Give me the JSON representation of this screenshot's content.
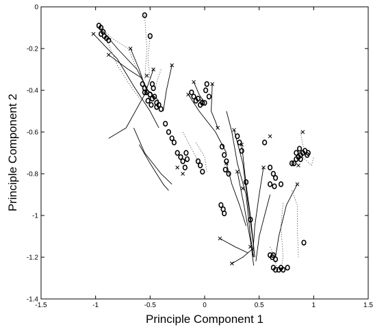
{
  "chart_data": {
    "type": "scatter",
    "title": "",
    "xlabel": "Principle Component 1",
    "ylabel": "Principle Component 2",
    "xlim": [
      -1.5,
      1.5
    ],
    "ylim": [
      -1.4,
      0
    ],
    "xticks": [
      "-1.5",
      "-1",
      "-0.5",
      "0",
      "0.5",
      "1",
      "1.5"
    ],
    "yticks": [
      "-1.4",
      "-1.2",
      "-1",
      "-0.8",
      "-0.6",
      "-0.4",
      "-0.2",
      "0"
    ],
    "grid": false,
    "legend": "none",
    "series": [
      {
        "marker": "o",
        "values": [
          [
            -0.97,
            -0.09
          ],
          [
            -0.95,
            -0.1
          ],
          [
            -0.93,
            -0.12
          ],
          [
            -0.92,
            -0.14
          ],
          [
            -0.9,
            -0.15
          ],
          [
            -0.95,
            -0.13
          ],
          [
            -0.88,
            -0.16
          ],
          [
            -0.55,
            -0.04
          ],
          [
            -0.5,
            -0.14
          ],
          [
            -0.57,
            -0.37
          ],
          [
            -0.55,
            -0.39
          ],
          [
            -0.53,
            -0.41
          ],
          [
            -0.5,
            -0.42
          ],
          [
            -0.48,
            -0.44
          ],
          [
            -0.46,
            -0.43
          ],
          [
            -0.44,
            -0.46
          ],
          [
            -0.52,
            -0.45
          ],
          [
            -0.49,
            -0.47
          ],
          [
            -0.44,
            -0.48
          ],
          [
            -0.42,
            -0.47
          ],
          [
            -0.4,
            -0.49
          ],
          [
            -0.55,
            -0.41
          ],
          [
            -0.48,
            -0.37
          ],
          [
            -0.47,
            -0.39
          ],
          [
            -0.36,
            -0.56
          ],
          [
            -0.33,
            -0.6
          ],
          [
            -0.3,
            -0.63
          ],
          [
            -0.28,
            -0.65
          ],
          [
            -0.25,
            -0.7
          ],
          [
            -0.22,
            -0.72
          ],
          [
            -0.2,
            -0.74
          ],
          [
            -0.18,
            -0.77
          ],
          [
            -0.17,
            -0.7
          ],
          [
            -0.16,
            -0.73
          ],
          [
            -0.12,
            -0.41
          ],
          [
            -0.1,
            -0.43
          ],
          [
            -0.08,
            -0.45
          ],
          [
            -0.06,
            -0.44
          ],
          [
            -0.04,
            -0.47
          ],
          [
            -0.02,
            -0.46
          ],
          [
            0.01,
            -0.4
          ],
          [
            0.02,
            -0.37
          ],
          [
            0.04,
            -0.43
          ],
          [
            0.0,
            -0.46
          ],
          [
            -0.06,
            -0.74
          ],
          [
            -0.04,
            -0.76
          ],
          [
            -0.02,
            -0.79
          ],
          [
            0.16,
            -0.67
          ],
          [
            0.18,
            -0.71
          ],
          [
            0.2,
            -0.74
          ],
          [
            0.19,
            -0.78
          ],
          [
            0.22,
            -0.8
          ],
          [
            0.15,
            -0.95
          ],
          [
            0.17,
            -0.97
          ],
          [
            0.18,
            -0.99
          ],
          [
            0.3,
            -0.62
          ],
          [
            0.32,
            -0.65
          ],
          [
            0.34,
            -0.69
          ],
          [
            0.38,
            -0.84
          ],
          [
            0.42,
            -1.02
          ],
          [
            0.55,
            -0.65
          ],
          [
            0.6,
            -0.77
          ],
          [
            0.63,
            -0.8
          ],
          [
            0.65,
            -0.82
          ],
          [
            0.6,
            -0.85
          ],
          [
            0.64,
            -0.86
          ],
          [
            0.7,
            -0.85
          ],
          [
            0.84,
            -0.7
          ],
          [
            0.86,
            -0.72
          ],
          [
            0.88,
            -0.71
          ],
          [
            0.9,
            -0.7
          ],
          [
            0.92,
            -0.69
          ],
          [
            0.94,
            -0.71
          ],
          [
            0.95,
            -0.7
          ],
          [
            0.88,
            -0.73
          ],
          [
            0.87,
            -0.68
          ],
          [
            0.84,
            -0.73
          ],
          [
            0.82,
            -0.75
          ],
          [
            0.8,
            -0.75
          ],
          [
            0.6,
            -1.19
          ],
          [
            0.62,
            -1.2
          ],
          [
            0.65,
            -1.21
          ],
          [
            0.63,
            -1.19
          ],
          [
            0.63,
            -1.25
          ],
          [
            0.65,
            -1.26
          ],
          [
            0.68,
            -1.26
          ],
          [
            0.7,
            -1.25
          ],
          [
            0.72,
            -1.26
          ],
          [
            0.76,
            -1.25
          ],
          [
            0.91,
            -1.13
          ]
        ]
      },
      {
        "marker": "x",
        "values": [
          [
            -1.02,
            -0.13
          ],
          [
            -0.88,
            -0.23
          ],
          [
            -0.68,
            -0.2
          ],
          [
            -0.53,
            -0.33
          ],
          [
            -0.47,
            -0.3
          ],
          [
            -0.3,
            -0.28
          ],
          [
            -0.15,
            -0.42
          ],
          [
            -0.25,
            -0.77
          ],
          [
            -0.2,
            -0.8
          ],
          [
            -0.1,
            -0.36
          ],
          [
            0.07,
            -0.37
          ],
          [
            -0.03,
            -0.45
          ],
          [
            0.12,
            -0.58
          ],
          [
            0.2,
            -0.75
          ],
          [
            0.27,
            -0.59
          ],
          [
            0.34,
            -0.66
          ],
          [
            0.3,
            -0.79
          ],
          [
            0.35,
            -0.87
          ],
          [
            0.14,
            -1.11
          ],
          [
            0.25,
            -1.23
          ],
          [
            0.42,
            -1.15
          ],
          [
            0.54,
            -0.77
          ],
          [
            0.6,
            -0.62
          ],
          [
            0.85,
            -0.85
          ],
          [
            0.9,
            -0.6
          ],
          [
            0.86,
            -0.76
          ]
        ]
      }
    ],
    "trajectories": {
      "solid": [
        [
          [
            -1.02,
            -0.13
          ],
          [
            -0.8,
            -0.25
          ],
          [
            -0.65,
            -0.38
          ],
          [
            -0.5,
            -0.5
          ],
          [
            -0.42,
            -0.58
          ]
        ],
        [
          [
            -0.96,
            -0.1
          ],
          [
            -0.8,
            -0.2
          ],
          [
            -0.62,
            -0.3
          ],
          [
            -0.52,
            -0.4
          ],
          [
            -0.42,
            -0.45
          ]
        ],
        [
          [
            -0.88,
            -0.23
          ],
          [
            -0.7,
            -0.3
          ],
          [
            -0.58,
            -0.34
          ]
        ],
        [
          [
            -0.47,
            -0.3
          ],
          [
            -0.55,
            -0.42
          ],
          [
            -0.72,
            -0.58
          ],
          [
            -0.88,
            -0.63
          ]
        ],
        [
          [
            -0.68,
            -0.2
          ],
          [
            -0.6,
            -0.3
          ],
          [
            -0.5,
            -0.45
          ]
        ],
        [
          [
            -0.3,
            -0.28
          ],
          [
            -0.35,
            -0.4
          ],
          [
            -0.38,
            -0.5
          ]
        ],
        [
          [
            -0.65,
            -0.58
          ],
          [
            -0.55,
            -0.7
          ],
          [
            -0.4,
            -0.8
          ],
          [
            -0.3,
            -0.85
          ]
        ],
        [
          [
            -0.6,
            -0.66
          ],
          [
            -0.5,
            -0.75
          ],
          [
            -0.38,
            -0.85
          ],
          [
            -0.33,
            -0.88
          ]
        ],
        [
          [
            -0.1,
            -0.36
          ],
          [
            -0.05,
            -0.42
          ],
          [
            0.0,
            -0.46
          ]
        ],
        [
          [
            0.07,
            -0.37
          ],
          [
            0.06,
            -0.5
          ],
          [
            0.1,
            -0.55
          ],
          [
            0.12,
            -0.58
          ]
        ],
        [
          [
            0.2,
            -0.5
          ],
          [
            0.25,
            -0.6
          ],
          [
            0.3,
            -0.75
          ],
          [
            0.38,
            -0.9
          ],
          [
            0.42,
            -1.1
          ],
          [
            0.45,
            -1.2
          ]
        ],
        [
          [
            0.27,
            -0.59
          ],
          [
            0.35,
            -0.75
          ],
          [
            0.4,
            -0.95
          ],
          [
            0.45,
            -1.15
          ]
        ],
        [
          [
            0.34,
            -0.66
          ],
          [
            0.38,
            -0.85
          ],
          [
            0.42,
            -1.0
          ],
          [
            0.46,
            -1.2
          ]
        ],
        [
          [
            0.3,
            -0.79
          ],
          [
            0.36,
            -0.95
          ],
          [
            0.42,
            -1.12
          ],
          [
            0.45,
            -1.24
          ]
        ],
        [
          [
            0.14,
            -1.11
          ],
          [
            0.28,
            -1.15
          ],
          [
            0.4,
            -1.18
          ]
        ],
        [
          [
            0.25,
            -1.23
          ],
          [
            0.35,
            -1.2
          ],
          [
            0.44,
            -1.16
          ]
        ],
        [
          [
            0.54,
            -0.77
          ],
          [
            0.5,
            -0.9
          ],
          [
            0.46,
            -1.05
          ],
          [
            0.44,
            -1.2
          ]
        ],
        [
          [
            0.6,
            -0.9
          ],
          [
            0.55,
            -1.0
          ],
          [
            0.5,
            -1.1
          ],
          [
            0.47,
            -1.22
          ]
        ],
        [
          [
            0.85,
            -0.85
          ],
          [
            0.75,
            -0.95
          ],
          [
            0.68,
            -1.1
          ],
          [
            0.65,
            -1.2
          ]
        ],
        [
          [
            0.2,
            -0.75
          ],
          [
            0.25,
            -0.85
          ],
          [
            0.32,
            -0.95
          ],
          [
            0.38,
            -1.05
          ]
        ],
        [
          [
            -0.15,
            -0.42
          ],
          [
            -0.05,
            -0.5
          ],
          [
            0.1,
            -0.6
          ],
          [
            0.2,
            -0.7
          ]
        ]
      ],
      "dotted": [
        [
          [
            -0.95,
            -0.1
          ],
          [
            -0.85,
            -0.15
          ],
          [
            -0.7,
            -0.2
          ],
          [
            -0.62,
            -0.3
          ],
          [
            -0.55,
            -0.38
          ]
        ],
        [
          [
            -0.93,
            -0.12
          ],
          [
            -0.8,
            -0.28
          ],
          [
            -0.68,
            -0.38
          ],
          [
            -0.58,
            -0.45
          ]
        ],
        [
          [
            -0.55,
            -0.04
          ],
          [
            -0.53,
            -0.2
          ],
          [
            -0.55,
            -0.35
          ]
        ],
        [
          [
            -0.5,
            -0.14
          ],
          [
            -0.52,
            -0.25
          ],
          [
            -0.5,
            -0.35
          ]
        ],
        [
          [
            -0.4,
            -0.3
          ],
          [
            -0.45,
            -0.38
          ]
        ],
        [
          [
            0.88,
            -0.6
          ],
          [
            0.9,
            -0.66
          ],
          [
            0.92,
            -0.7
          ]
        ],
        [
          [
            0.9,
            -0.72
          ],
          [
            0.98,
            -0.76
          ],
          [
            1.0,
            -0.72
          ]
        ],
        [
          [
            0.8,
            -0.88
          ],
          [
            0.85,
            -0.95
          ],
          [
            0.85,
            -1.05
          ],
          [
            0.86,
            -1.2
          ]
        ],
        [
          [
            0.72,
            -0.94
          ],
          [
            0.7,
            -1.05
          ],
          [
            0.72,
            -1.2
          ],
          [
            0.7,
            -1.26
          ]
        ],
        [
          [
            0.6,
            -1.15
          ],
          [
            0.64,
            -1.2
          ],
          [
            0.66,
            -1.25
          ]
        ],
        [
          [
            -0.2,
            -0.6
          ],
          [
            -0.1,
            -0.7
          ],
          [
            -0.05,
            -0.75
          ]
        ],
        [
          [
            -0.08,
            -0.65
          ],
          [
            0.0,
            -0.72
          ],
          [
            0.02,
            -0.79
          ]
        ]
      ]
    }
  }
}
